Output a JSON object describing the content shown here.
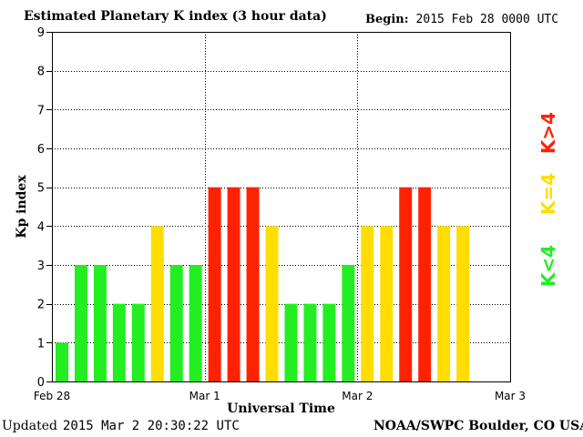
{
  "header": {
    "title": "Estimated Planetary K index (3 hour data)",
    "begin_label": "Begin:",
    "begin_value": "2015 Feb 28 0000 UTC"
  },
  "footer": {
    "updated_label": "Updated",
    "updated_value": "2015 Mar  2 20:30:22 UTC",
    "source": "NOAA/SWPC Boulder, CO USA"
  },
  "colors": {
    "green": "#22ee22",
    "yellow": "#ffdd00",
    "red": "#ff2200"
  },
  "chart_data": {
    "type": "bar",
    "title": "Estimated Planetary K index (3 hour data)",
    "xlabel": "Universal Time",
    "ylabel": "Kp index",
    "ylim": [
      0,
      9
    ],
    "yticks": [
      "0",
      "1",
      "2",
      "3",
      "4",
      "5",
      "6",
      "7",
      "8",
      "9"
    ],
    "xticks": [
      "Feb 28",
      "Mar 1",
      "Mar 2",
      "Mar 3"
    ],
    "slots_total": 24,
    "grid": true,
    "values": [
      1,
      3,
      3,
      2,
      2,
      4,
      3,
      3,
      5,
      5,
      5,
      4,
      2,
      2,
      2,
      3,
      4,
      4,
      5,
      5,
      4,
      4
    ],
    "bar_colors": [
      "green",
      "green",
      "green",
      "green",
      "green",
      "yellow",
      "green",
      "green",
      "red",
      "red",
      "red",
      "yellow",
      "green",
      "green",
      "green",
      "green",
      "yellow",
      "yellow",
      "red",
      "red",
      "yellow",
      "yellow"
    ],
    "legend": [
      {
        "label": "K<4",
        "color": "green"
      },
      {
        "label": "K=4",
        "color": "yellow"
      },
      {
        "label": "K>4",
        "color": "red"
      }
    ],
    "legend_placement": "right"
  }
}
